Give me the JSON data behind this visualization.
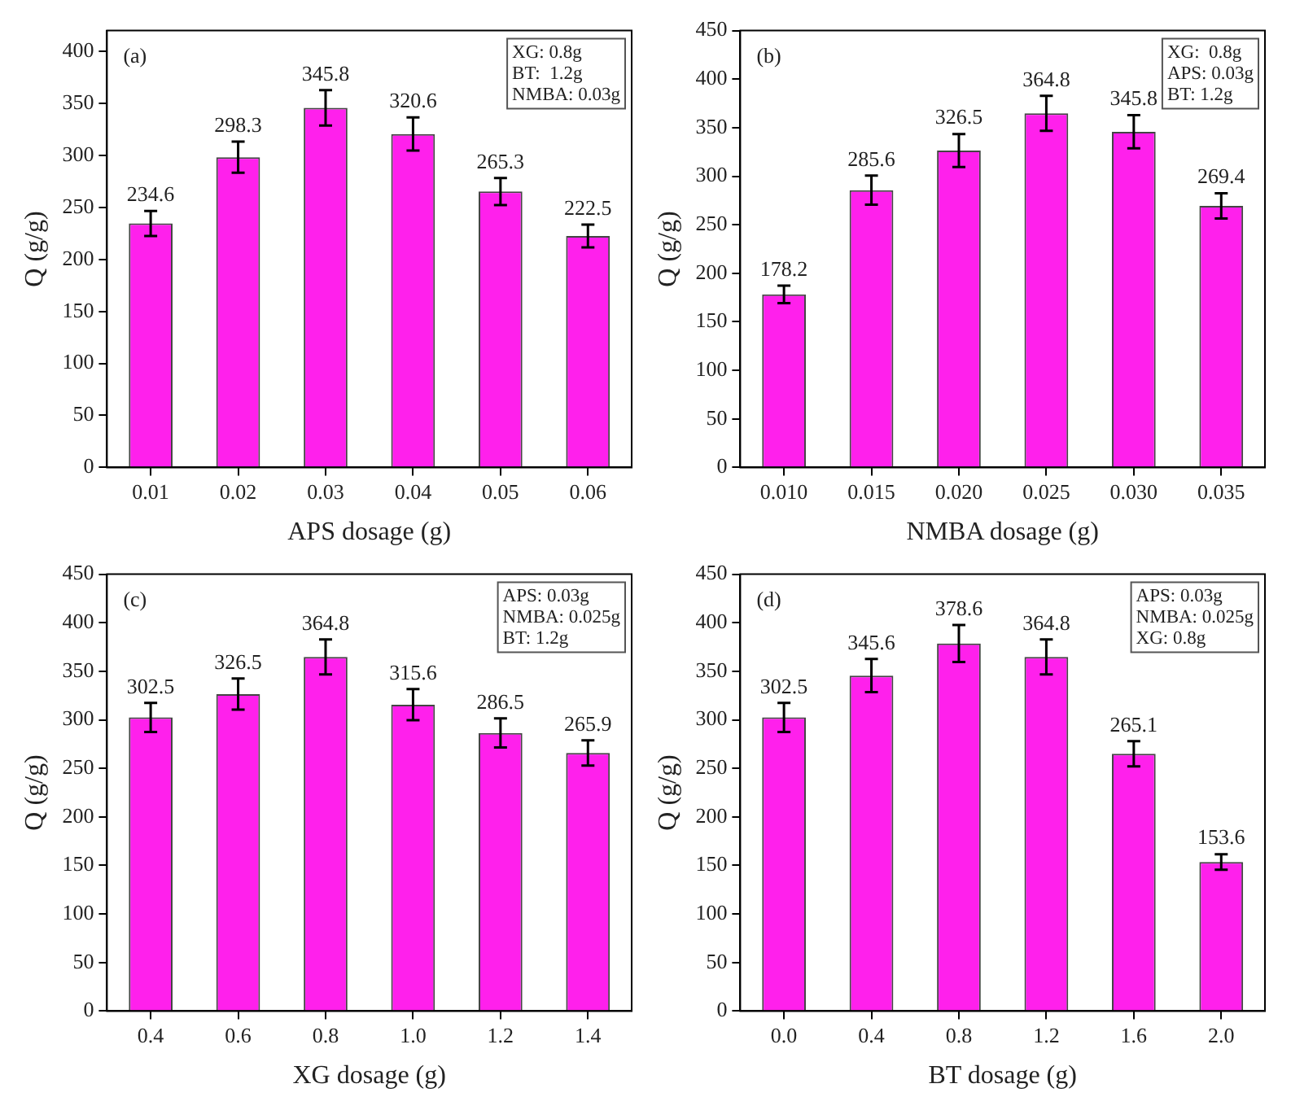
{
  "chart_data": [
    {
      "type": "bar",
      "xlabel": "APS dosage (g)",
      "ylabel": "Q (g/g)",
      "categories": [
        "0.01",
        "0.02",
        "0.03",
        "0.04",
        "0.05",
        "0.06"
      ],
      "values": [
        234.6,
        298.3,
        345.8,
        320.6,
        265.3,
        222.5
      ],
      "errors": [
        12,
        15,
        17,
        16,
        13,
        11
      ],
      "color": "#ff20ec",
      "ylim": [
        0,
        420
      ],
      "yticks": [
        0,
        50,
        100,
        150,
        200,
        250,
        300,
        350,
        400
      ],
      "grid": false,
      "legend": false,
      "data_labels": true,
      "annotations": [
        "(a)",
        "XG: 0.8g",
        "BT:  1.2g",
        "NMBA: 0.03g"
      ]
    },
    {
      "type": "bar",
      "xlabel": "NMBA dosage (g)",
      "ylabel": "Q (g/g)",
      "categories": [
        "0.010",
        "0.015",
        "0.020",
        "0.025",
        "0.030",
        "0.035"
      ],
      "values": [
        178.2,
        285.6,
        326.5,
        364.8,
        345.8,
        269.4
      ],
      "errors": [
        9,
        15,
        17,
        18,
        17,
        13
      ],
      "color": "#ff20ec",
      "ylim": [
        0,
        450
      ],
      "yticks": [
        0,
        50,
        100,
        150,
        200,
        250,
        300,
        350,
        400,
        450
      ],
      "grid": false,
      "legend": false,
      "data_labels": true,
      "annotations": [
        "(b)",
        "XG:  0.8g",
        "APS: 0.03g",
        "BT: 1.2g"
      ]
    },
    {
      "type": "bar",
      "xlabel": "XG dosage (g)",
      "ylabel": "Q (g/g)",
      "categories": [
        "0.4",
        "0.6",
        "0.8",
        "1.0",
        "1.2",
        "1.4"
      ],
      "values": [
        302.5,
        326.5,
        364.8,
        315.6,
        286.5,
        265.9
      ],
      "errors": [
        15,
        16,
        18,
        16,
        15,
        13
      ],
      "color": "#ff20ec",
      "ylim": [
        0,
        450
      ],
      "yticks": [
        0,
        50,
        100,
        150,
        200,
        250,
        300,
        350,
        400,
        450
      ],
      "grid": false,
      "legend": false,
      "data_labels": true,
      "annotations": [
        "(c)",
        "APS: 0.03g",
        "NMBA: 0.025g",
        "BT: 1.2g"
      ]
    },
    {
      "type": "bar",
      "xlabel": "BT dosage (g)",
      "ylabel": "Q (g/g)",
      "categories": [
        "0.0",
        "0.4",
        "0.8",
        "1.2",
        "1.6",
        "2.0"
      ],
      "values": [
        302.5,
        345.6,
        378.6,
        364.8,
        265.1,
        153.6
      ],
      "errors": [
        15,
        17,
        19,
        18,
        13,
        8
      ],
      "color": "#ff20ec",
      "ylim": [
        0,
        450
      ],
      "yticks": [
        0,
        50,
        100,
        150,
        200,
        250,
        300,
        350,
        400,
        450
      ],
      "grid": false,
      "legend": false,
      "data_labels": true,
      "annotations": [
        "(d)",
        "APS: 0.03g",
        "NMBA: 0.025g",
        "XG: 0.8g"
      ]
    }
  ]
}
